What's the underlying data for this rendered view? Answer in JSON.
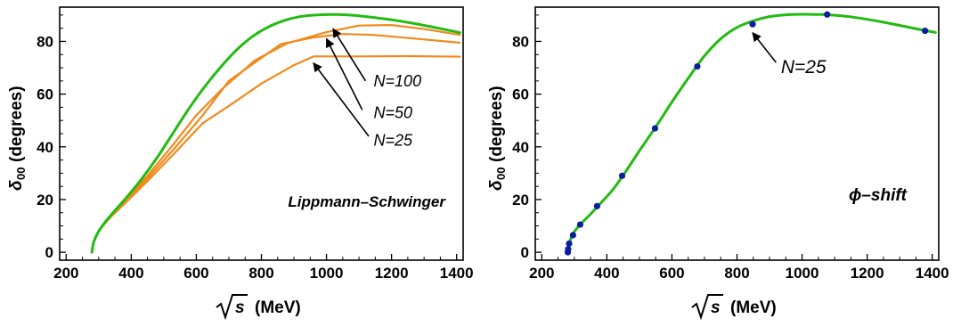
{
  "chart_data": [
    {
      "type": "line",
      "annotation_title": "Lippmann–Schwinger",
      "xlabel": "√s (MeV)",
      "xlabel_parts": {
        "sqrt_arg": "s",
        "unit": "(MeV)"
      },
      "ylabel": "δ₀₀(degrees)",
      "ylabel_parts": {
        "delta": "δ",
        "sub": "00",
        "unit": "(degrees)"
      },
      "xlim": [
        180,
        1420
      ],
      "ylim": [
        -3,
        93
      ],
      "xticks": [
        "200",
        "400",
        "600",
        "800",
        "1000",
        "1200",
        "1400"
      ],
      "yticks": [
        "0",
        "20",
        "40",
        "60",
        "80"
      ],
      "colors": {
        "exact": "#22bb11",
        "approx": "#f08a1c"
      },
      "series": [
        {
          "name": "",
          "color_key": "exact",
          "smooth": true,
          "x": [
            279,
            285,
            300,
            330,
            380,
            430,
            480,
            530,
            580,
            630,
            680,
            730,
            780,
            830,
            880,
            930,
            980,
            1030,
            1080,
            1130,
            1200,
            1260,
            1320,
            1380,
            1410
          ],
          "y": [
            0,
            4,
            8,
            13,
            20,
            27.5,
            36,
            45.5,
            55,
            63.5,
            71,
            77.5,
            82.5,
            86,
            88.3,
            89.6,
            90.1,
            90.2,
            89.9,
            89.3,
            88.2,
            87,
            85.6,
            84.1,
            83.3
          ]
        },
        {
          "name": "",
          "color_key": "approx",
          "smooth": false,
          "x": [
            279,
            285,
            300,
            330,
            380,
            450,
            530,
            600,
            680,
            780,
            880,
            1000,
            1100,
            1200,
            1300,
            1410
          ],
          "y": [
            0,
            4,
            8,
            13,
            20,
            29,
            41,
            52,
            62,
            72.8,
            79.3,
            83.5,
            86,
            86.2,
            84.7,
            82.5
          ]
        },
        {
          "name": "",
          "color_key": "approx",
          "smooth": false,
          "x": [
            279,
            285,
            300,
            330,
            380,
            450,
            530,
            620,
            700,
            860,
            960,
            1050,
            1140,
            1260,
            1410
          ],
          "y": [
            0,
            4,
            8,
            13,
            19.5,
            28,
            39,
            52,
            65,
            79,
            81.5,
            82.8,
            82.5,
            81.2,
            79.5
          ]
        },
        {
          "name": "",
          "color_key": "approx",
          "smooth": false,
          "x": [
            279,
            285,
            300,
            330,
            380,
            450,
            540,
            620,
            700,
            800,
            900,
            960,
            1100,
            1250,
            1410
          ],
          "y": [
            0,
            4,
            8,
            12.5,
            18.5,
            27,
            38.5,
            49,
            55.5,
            64,
            71,
            74.3,
            74.3,
            74.4,
            74.2
          ]
        }
      ],
      "annotations": [
        {
          "text": "N=100",
          "arrow_from": [
            1120,
            65
          ],
          "arrow_to": [
            1020,
            84.8
          ],
          "text_at": [
            1145,
            63
          ]
        },
        {
          "text": "N=50",
          "arrow_from": [
            1110,
            54
          ],
          "arrow_to": [
            1000,
            81
          ],
          "text_at": [
            1145,
            51
          ]
        },
        {
          "text": "N=25",
          "arrow_from": [
            1130,
            44
          ],
          "arrow_to": [
            960,
            71.8
          ],
          "text_at": [
            1145,
            40.5
          ]
        }
      ]
    },
    {
      "type": "line",
      "annotation_title": "ϕ–shift",
      "xlabel": "√s (MeV)",
      "xlabel_parts": {
        "sqrt_arg": "s",
        "unit": "(MeV)"
      },
      "ylabel": "δ₀₀(degrees)",
      "ylabel_parts": {
        "delta": "δ",
        "sub": "00",
        "unit": "(degrees)"
      },
      "xlim": [
        180,
        1420
      ],
      "ylim": [
        -3,
        93
      ],
      "xticks": [
        "200",
        "400",
        "600",
        "800",
        "1000",
        "1200",
        "1400"
      ],
      "yticks": [
        "0",
        "20",
        "40",
        "60",
        "80"
      ],
      "colors": {
        "curve": "#22bb11",
        "points": "#0a1ea0"
      },
      "series": [
        {
          "name": "",
          "color_key": "curve",
          "smooth": true,
          "x": [
            279,
            282,
            285,
            290,
            300,
            320,
            350,
            380,
            420,
            460,
            500,
            550,
            600,
            650,
            700,
            750,
            800,
            850,
            900,
            950,
            1000,
            1050,
            1080,
            1150,
            1250,
            1350,
            1410
          ],
          "y": [
            0,
            1.5,
            3.2,
            5.5,
            7.8,
            10.8,
            14.5,
            18.5,
            24,
            31,
            38.5,
            47.5,
            57,
            66,
            74.5,
            81,
            85.3,
            87.8,
            89.4,
            90.1,
            90.3,
            90.2,
            90.1,
            89.3,
            87.3,
            84.8,
            83.4
          ]
        },
        {
          "name": "",
          "color_key": "points",
          "kind": "scatter",
          "x": [
            280,
            281,
            284,
            296,
            318,
            370,
            447,
            548,
            678,
            848,
            1077,
            1378
          ],
          "y": [
            0,
            1.2,
            3.3,
            6.5,
            10.5,
            17.5,
            29,
            47,
            70.5,
            86.5,
            90.2,
            84
          ]
        }
      ],
      "annotations": [
        {
          "text": "N=25",
          "arrow_from": [
            920,
            72
          ],
          "arrow_to": [
            848,
            83.3
          ],
          "text_at": [
            935,
            68
          ]
        }
      ]
    }
  ]
}
